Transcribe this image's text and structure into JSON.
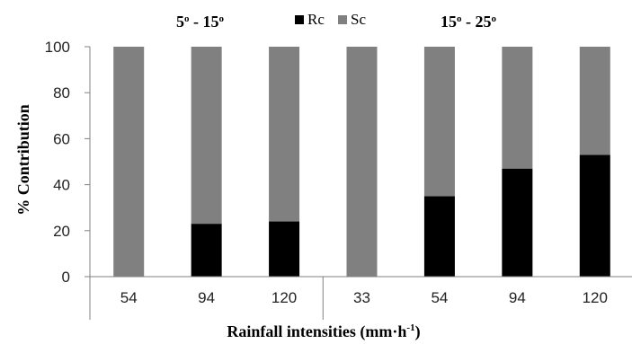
{
  "chart_data": {
    "type": "bar",
    "stacked": true,
    "groups": [
      {
        "label": "5° - 15°",
        "categories": [
          "54",
          "94",
          "120"
        ]
      },
      {
        "label": "15° - 25°",
        "categories": [
          "33",
          "54",
          "94",
          "120"
        ]
      }
    ],
    "categories": [
      "54",
      "94",
      "120",
      "33",
      "54",
      "94",
      "120"
    ],
    "series": [
      {
        "name": "Rc",
        "values": [
          0,
          23,
          24,
          0,
          35,
          47,
          53
        ],
        "color": "#000000"
      },
      {
        "name": "Sc",
        "values": [
          100,
          77,
          76,
          100,
          65,
          53,
          47
        ],
        "color": "#808080"
      }
    ],
    "ylim": [
      0,
      100
    ],
    "yticks": [
      0,
      20,
      40,
      60,
      80,
      100
    ],
    "ylabel": "% Contribution",
    "xlabel_main": "Rainfall intensities (mm·h",
    "xlabel_sup": "-1",
    "xlabel_end": ")",
    "grid": false,
    "legend_position": "top"
  }
}
